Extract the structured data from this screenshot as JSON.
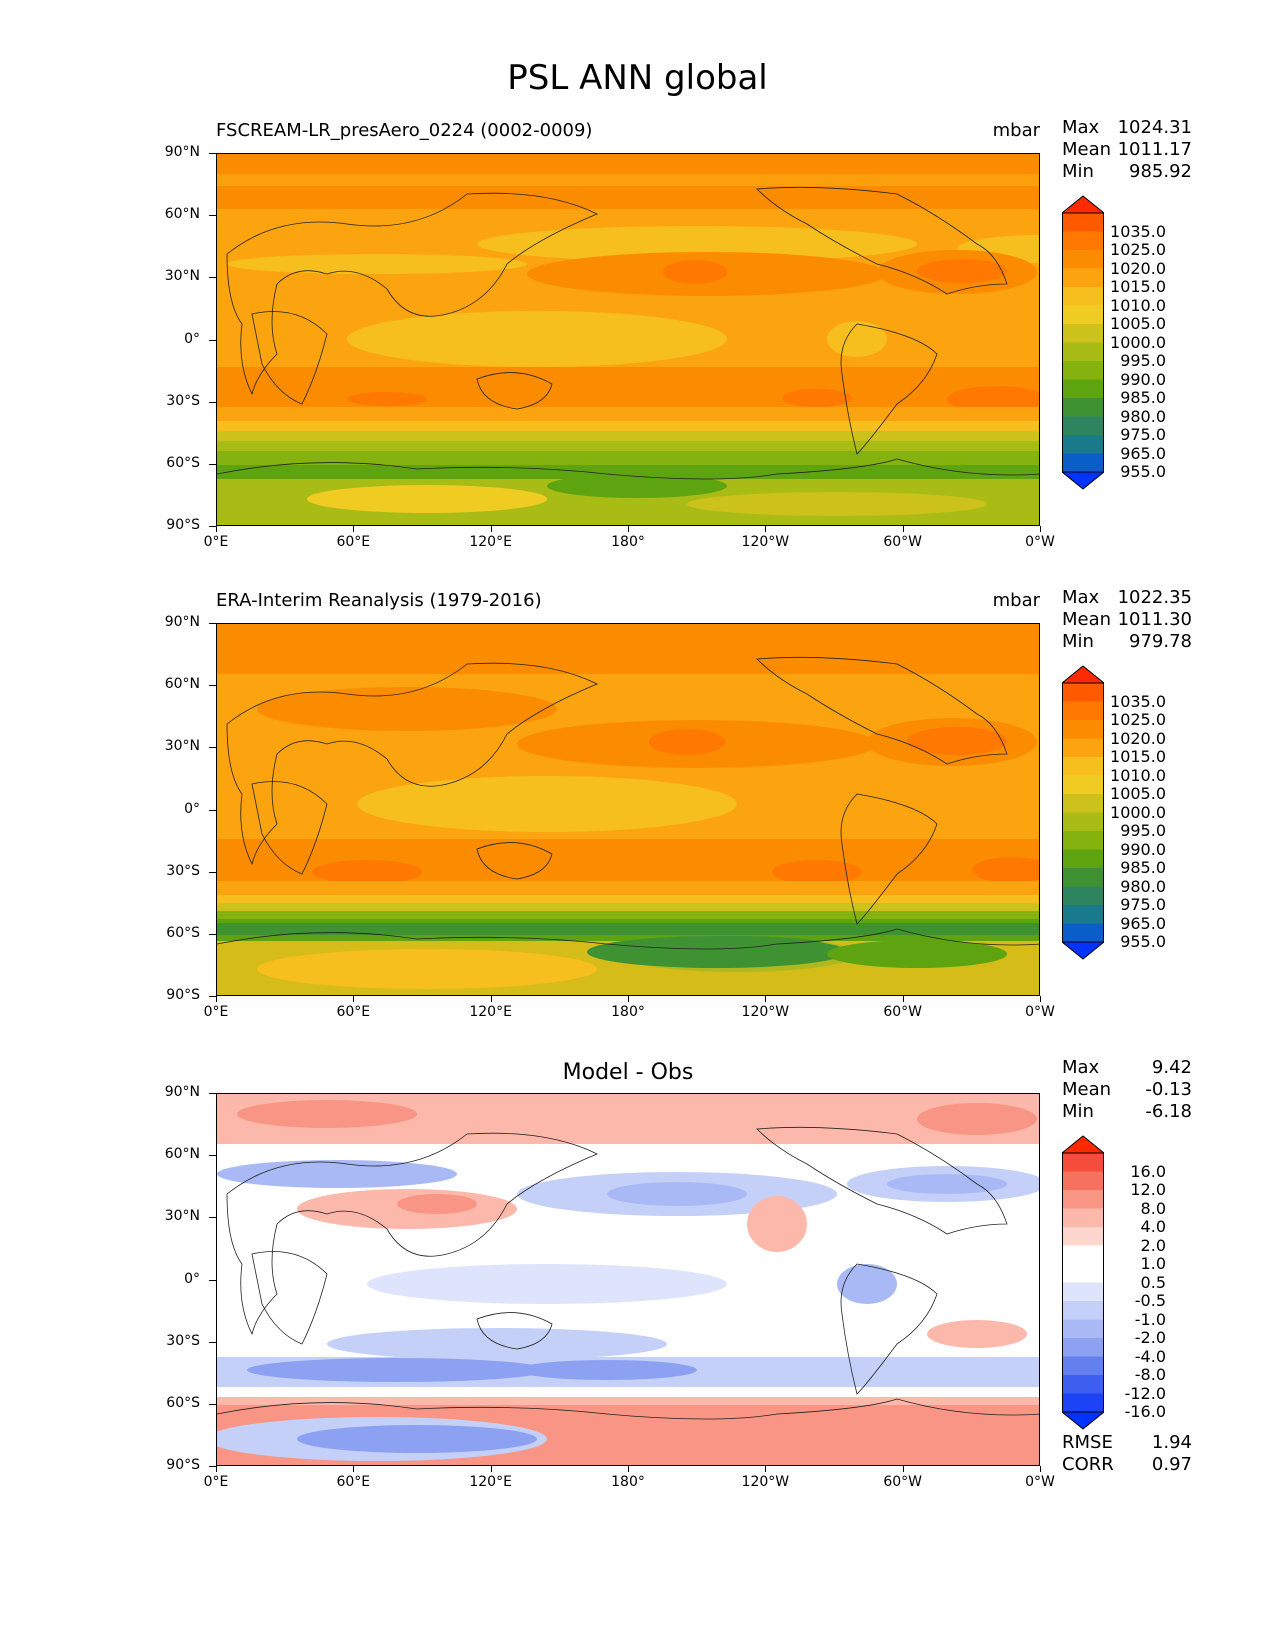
{
  "figure_title": "PSL ANN global",
  "lat_labels": [
    "90°N",
    "60°N",
    "30°N",
    "0°",
    "30°S",
    "60°S",
    "90°S"
  ],
  "lon_labels": [
    "0°E",
    "60°E",
    "120°E",
    "180°",
    "120°W",
    "60°W",
    "0°W"
  ],
  "panels": [
    {
      "title_left": "FSCREAM-LR_presAero_0224 (0002-0009)",
      "units": "mbar",
      "stats": [
        {
          "key": "Max",
          "value": "1024.31"
        },
        {
          "key": "Mean",
          "value": "1011.17"
        },
        {
          "key": "Min",
          "value": "985.92"
        }
      ],
      "colorbar_labels": [
        "1035.0",
        "1025.0",
        "1020.0",
        "1015.0",
        "1010.0",
        "1005.0",
        "1000.0",
        "995.0",
        "990.0",
        "985.0",
        "980.0",
        "975.0",
        "965.0",
        "955.0"
      ]
    },
    {
      "title_left": "ERA-Interim Reanalysis (1979-2016)",
      "units": "mbar",
      "stats": [
        {
          "key": "Max",
          "value": "1022.35"
        },
        {
          "key": "Mean",
          "value": "1011.30"
        },
        {
          "key": "Min",
          "value": "979.78"
        }
      ],
      "colorbar_labels": [
        "1035.0",
        "1025.0",
        "1020.0",
        "1015.0",
        "1010.0",
        "1005.0",
        "1000.0",
        "995.0",
        "990.0",
        "985.0",
        "980.0",
        "975.0",
        "965.0",
        "955.0"
      ]
    },
    {
      "title_center": "Model - Obs",
      "stats": [
        {
          "key": "Max",
          "value": "9.42"
        },
        {
          "key": "Mean",
          "value": "-0.13"
        },
        {
          "key": "Min",
          "value": "-6.18"
        }
      ],
      "colorbar_labels": [
        "16.0",
        "12.0",
        "8.0",
        "4.0",
        "2.0",
        "1.0",
        "0.5",
        "-0.5",
        "-1.0",
        "-2.0",
        "-4.0",
        "-8.0",
        "-12.0",
        "-16.0"
      ],
      "metrics": [
        {
          "key": "RMSE",
          "value": "1.94"
        },
        {
          "key": "CORR",
          "value": "0.97"
        }
      ]
    }
  ],
  "colors": {
    "abs_scale": [
      "#ff2a00",
      "#ff5a00",
      "#ff7800",
      "#fb8c00",
      "#fba40f",
      "#f7bf1e",
      "#f0cc23",
      "#cdc21b",
      "#a9bc15",
      "#86b20f",
      "#5ea411",
      "#3f9231",
      "#2f8460",
      "#197a8c",
      "#0a5ec8",
      "#0033ff"
    ],
    "diff_scale": [
      "#ff2a00",
      "#f54d3c",
      "#f5725f",
      "#f89584",
      "#fcb8aa",
      "#fdd6ce",
      "#ffffff",
      "#ffffff",
      "#dde4fb",
      "#c5d0f8",
      "#a9b9f5",
      "#8ca1f2",
      "#6480ee",
      "#3c5ff0",
      "#1d43f6",
      "#0033ff"
    ]
  }
}
